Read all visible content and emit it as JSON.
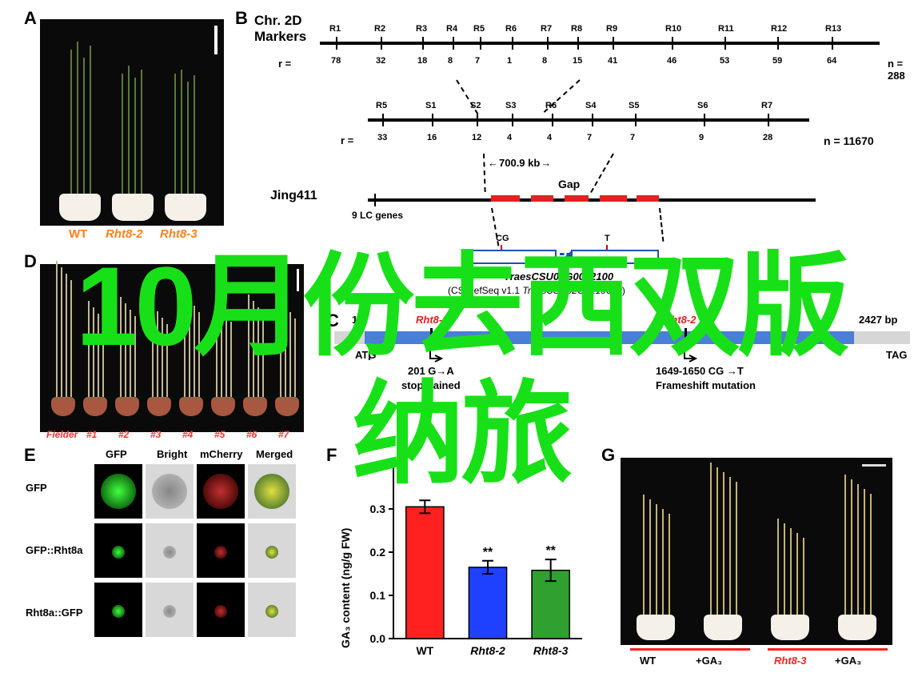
{
  "overlay": {
    "line1": "10月份去西双版",
    "line2": "纳旅"
  },
  "A": {
    "label": "A",
    "pot_labels": [
      "WT",
      "Rht8-2",
      "Rht8-3"
    ],
    "label_color": "#ff8020"
  },
  "B": {
    "label": "B",
    "chr_title": "Chr. 2D",
    "markers_title": "Markers",
    "r_eq": "r =",
    "row1": {
      "markers": [
        "R1",
        "R2",
        "R3",
        "R4",
        "R5",
        "R6",
        "R7",
        "R8",
        "R9",
        "R10",
        "R11",
        "R12",
        "R13"
      ],
      "r": [
        "78",
        "32",
        "18",
        "8",
        "7",
        "1",
        "8",
        "15",
        "41",
        "46",
        "53",
        "59",
        "64"
      ],
      "n": "n = 288"
    },
    "row2": {
      "markers": [
        "R5",
        "S1",
        "S2",
        "S3",
        "R6",
        "S4",
        "S5",
        "S6",
        "R7"
      ],
      "r": [
        "33",
        "16",
        "12",
        "4",
        "4",
        "7",
        "7",
        "9",
        "28"
      ],
      "n": "n = 11670",
      "gap_label": "700.9 kb"
    },
    "jing411": "Jing411",
    "lc_genes": "9 LC genes",
    "gap_label": "Gap",
    "cg_label": "CG",
    "t_label": "T",
    "gene1": "TraesCSU03G0022100",
    "cs_ref": "(CS RefSeq v1.1 TraesCSU02G0219600)"
  },
  "C": {
    "label": "C",
    "start": "1",
    "end": "2427 bp",
    "rht8_3": "Rht8-3",
    "rht8_2": "Rht8-2",
    "atg": "ATG",
    "tag": "TAG",
    "mut1_pos": "201 G→A",
    "mut1_desc": "stop-gained",
    "mut2_pos": "1649-1650  CG →T",
    "mut2_desc": "Frameshift mutation",
    "gene_bg": "#4a7fd6",
    "gap_bg": "#d6d6d6"
  },
  "D": {
    "label": "D",
    "labels": [
      "Fielder",
      "#1",
      "#2",
      "#3",
      "#4",
      "#5",
      "#6",
      "#7"
    ],
    "label_color": "#ff3030"
  },
  "E": {
    "label": "E",
    "cols": [
      "GFP",
      "Bright",
      "mCherry",
      "Merged"
    ],
    "rows": [
      "GFP",
      "GFP::Rht8a",
      "Rht8a::GFP"
    ]
  },
  "F": {
    "label": "F",
    "ylabel": "GA₃ content (ng/g FW)",
    "categories": [
      "WT",
      "Rht8-2",
      "Rht8-3"
    ],
    "values": [
      0.305,
      0.165,
      0.158
    ],
    "errors": [
      0.015,
      0.015,
      0.025
    ],
    "colors": [
      "#ff2020",
      "#2040ff",
      "#30a030"
    ],
    "ylim": [
      0.0,
      0.4
    ],
    "ytick_step": 0.1,
    "yticks": [
      "0.0",
      "0.1",
      "0.2",
      "0.3",
      "0.4"
    ],
    "stars": [
      "",
      "**",
      "**"
    ],
    "axis_fontsize": 14,
    "label_fontsize": 14,
    "bar_width": 0.6
  },
  "G": {
    "label": "G",
    "groups": [
      [
        "WT",
        "+GA₃"
      ],
      [
        "Rht8-3",
        "+GA₃"
      ]
    ],
    "underline_color": "#ff2020",
    "rht_italic_color": "#ff2020"
  }
}
